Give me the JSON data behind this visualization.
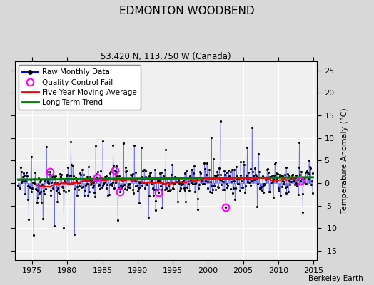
{
  "title": "EDMONTON WOODBEND",
  "subtitle": "53.420 N, 113.750 W (Canada)",
  "credit": "Berkeley Earth",
  "ylabel": "Temperature Anomaly (°C)",
  "xlim": [
    1972.5,
    2015.5
  ],
  "ylim": [
    -17,
    27
  ],
  "yticks": [
    -15,
    -10,
    -5,
    0,
    5,
    10,
    15,
    20,
    25
  ],
  "xticks": [
    1975,
    1980,
    1985,
    1990,
    1995,
    2000,
    2005,
    2010,
    2015
  ],
  "fig_bg_color": "#d8d8d8",
  "plot_bg_color": "#f0f0f0",
  "legend_labels": [
    "Raw Monthly Data",
    "Quality Control Fail",
    "Five Year Moving Average",
    "Long-Term Trend"
  ],
  "seed": 12345,
  "years_start": 1973,
  "years_end": 2014
}
